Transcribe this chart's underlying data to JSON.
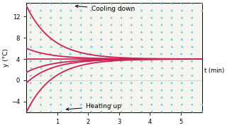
{
  "title_top": "Cooling down",
  "title_bottom": "Heating up",
  "xlabel": "t (min)",
  "ylabel": "y (°C)",
  "t_min": 0.0,
  "t_max": 5.7,
  "y_min": -6.0,
  "y_max": 14.5,
  "equilibrium": 4.0,
  "k": -1.2,
  "yticks": [
    -4,
    0,
    4,
    8,
    12
  ],
  "xticks": [
    1,
    2,
    3,
    4,
    5
  ],
  "slope_color": "#5bbccc",
  "curve_color": "#cc2255",
  "eq_line_color": "#cc2255",
  "bg_color": "#f5f5f0",
  "grid_color": "#bbbbbb",
  "curve_starts": [
    14.0,
    6.0,
    1.5,
    -0.5,
    -6.0
  ],
  "figsize": [
    3.2,
    1.8
  ],
  "dpi": 100
}
